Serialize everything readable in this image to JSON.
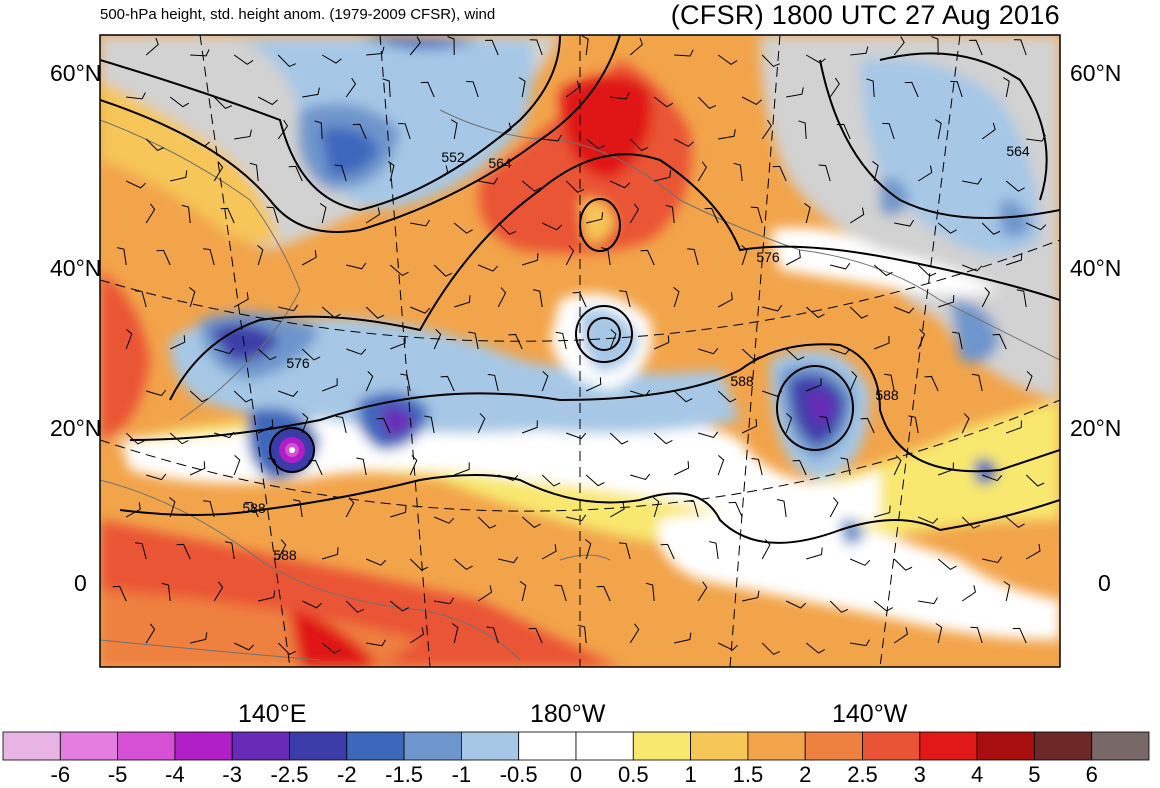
{
  "header": {
    "title_left": "500-hPa height, std. height anom. (1979-2009 CFSR), wind",
    "title_right": "(CFSR) 1800 UTC 27 Aug 2016"
  },
  "axes": {
    "lat_labels": [
      "60°N",
      "40°N",
      "20°N",
      "0"
    ],
    "lon_labels": [
      "140°E",
      "180°W",
      "140°W"
    ]
  },
  "contour_labels": [
    "552",
    "564",
    "576",
    "576",
    "588",
    "588",
    "588",
    "588",
    "564"
  ],
  "colorbar": {
    "labels": [
      "-6",
      "-5",
      "-4",
      "-3",
      "-2.5",
      "-2",
      "-1.5",
      "-1",
      "-0.5",
      "0",
      "0.5",
      "1",
      "1.5",
      "2",
      "2.5",
      "3",
      "4",
      "5",
      "6"
    ],
    "colors": [
      "#e8b4e4",
      "#e37de0",
      "#d650d6",
      "#b01ec8",
      "#6a2ab8",
      "#3c3ca8",
      "#3c68bc",
      "#6e96cc",
      "#a6c8e6",
      "#ffffff",
      "#ffffff",
      "#f8e870",
      "#f6c658",
      "#f2a44a",
      "#ee8040",
      "#ea5436",
      "#e01818",
      "#a80e0e",
      "#6e2828",
      "#786868"
    ]
  },
  "colors": {
    "land_outline": "#707070",
    "contour": "#000000",
    "neutral": "#ffffff",
    "missing": "#d2d2d2"
  }
}
